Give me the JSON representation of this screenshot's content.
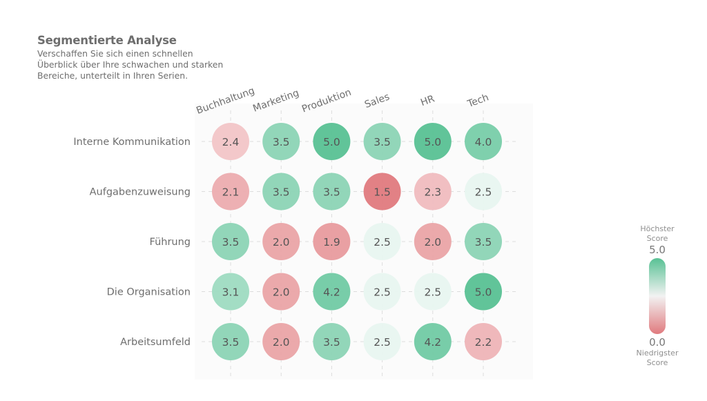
{
  "header": {
    "title": "Segmentierte Analyse",
    "subtitle": "Verschaffen Sie sich einen schnellen Überblick über Ihre schwachen und starken Bereiche, unterteilt in Ihren Serien."
  },
  "legend": {
    "top_caption_line1": "Höchster",
    "top_caption_line2": "Score",
    "max_label": "5.0",
    "min_label": "0.0",
    "bottom_caption_line1": "Niedrigster",
    "bottom_caption_line2": "Score",
    "colors": {
      "high": "#58c194",
      "mid": "#f2f2f2",
      "low": "#e07a7e"
    }
  },
  "chart_data": {
    "type": "heatmap",
    "title": "Segmentierte Analyse",
    "columns": [
      "Buchhaltung",
      "Marketing",
      "Produktion",
      "Sales",
      "HR",
      "Tech"
    ],
    "rows": [
      "Interne Kommunikation",
      "Aufgabenzuweisung",
      "Führung",
      "Die Organisation",
      "Arbeitsumfeld"
    ],
    "values": [
      [
        2.4,
        3.5,
        5.0,
        3.5,
        5.0,
        4.0
      ],
      [
        2.1,
        3.5,
        3.5,
        1.5,
        2.3,
        2.5
      ],
      [
        3.5,
        2.0,
        1.9,
        2.5,
        2.0,
        3.5
      ],
      [
        3.1,
        2.0,
        4.2,
        2.5,
        2.5,
        5.0
      ],
      [
        3.5,
        2.0,
        3.5,
        2.5,
        4.2,
        2.2
      ]
    ],
    "scale": {
      "min": 0.0,
      "max": 5.0
    },
    "grid": true,
    "legend_position": "right"
  }
}
